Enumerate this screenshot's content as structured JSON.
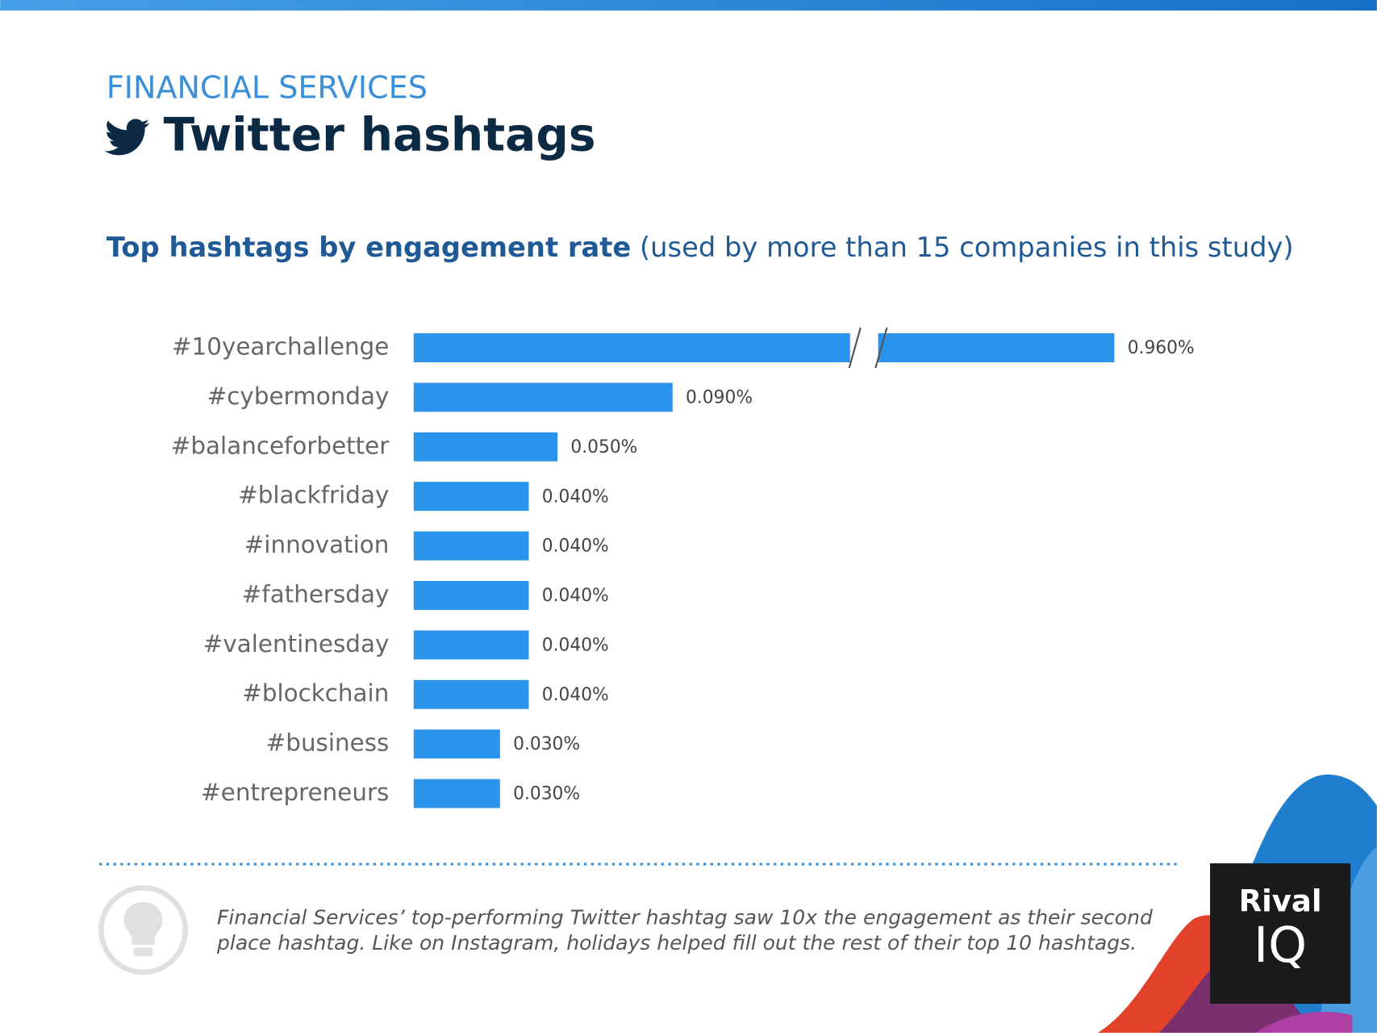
{
  "header": {
    "kicker": "FINANCIAL SERVICES",
    "title": "Twitter hashtags"
  },
  "chart_data": {
    "type": "bar",
    "orientation": "horizontal",
    "title_bold": "Top hashtags by engagement rate",
    "title_rest": "(used by more than 15 companies in this study)",
    "categories": [
      "#10yearchallenge",
      "#cybermonday",
      "#balanceforbetter",
      "#blackfriday",
      "#innovation",
      "#fathersday",
      "#valentinesday",
      "#blockchain",
      "#business",
      "#entrepreneurs"
    ],
    "values": [
      0.96,
      0.09,
      0.05,
      0.04,
      0.04,
      0.04,
      0.04,
      0.04,
      0.03,
      0.03
    ],
    "value_labels": [
      "0.960%",
      "0.090%",
      "0.050%",
      "0.040%",
      "0.040%",
      "0.040%",
      "0.040%",
      "0.040%",
      "0.030%",
      "0.030%"
    ],
    "color": "#2a93eb",
    "xlim": [
      0,
      0.25
    ],
    "axis_break": true
  },
  "note": [
    "Financial Services’ top-performing Twitter hashtag saw 10x the engagement as their second",
    "place hashtag. Like on Instagram, holidays helped fill out the rest of their top 10 hashtags."
  ],
  "logo": {
    "line1": "Rival",
    "line2": "IQ"
  }
}
